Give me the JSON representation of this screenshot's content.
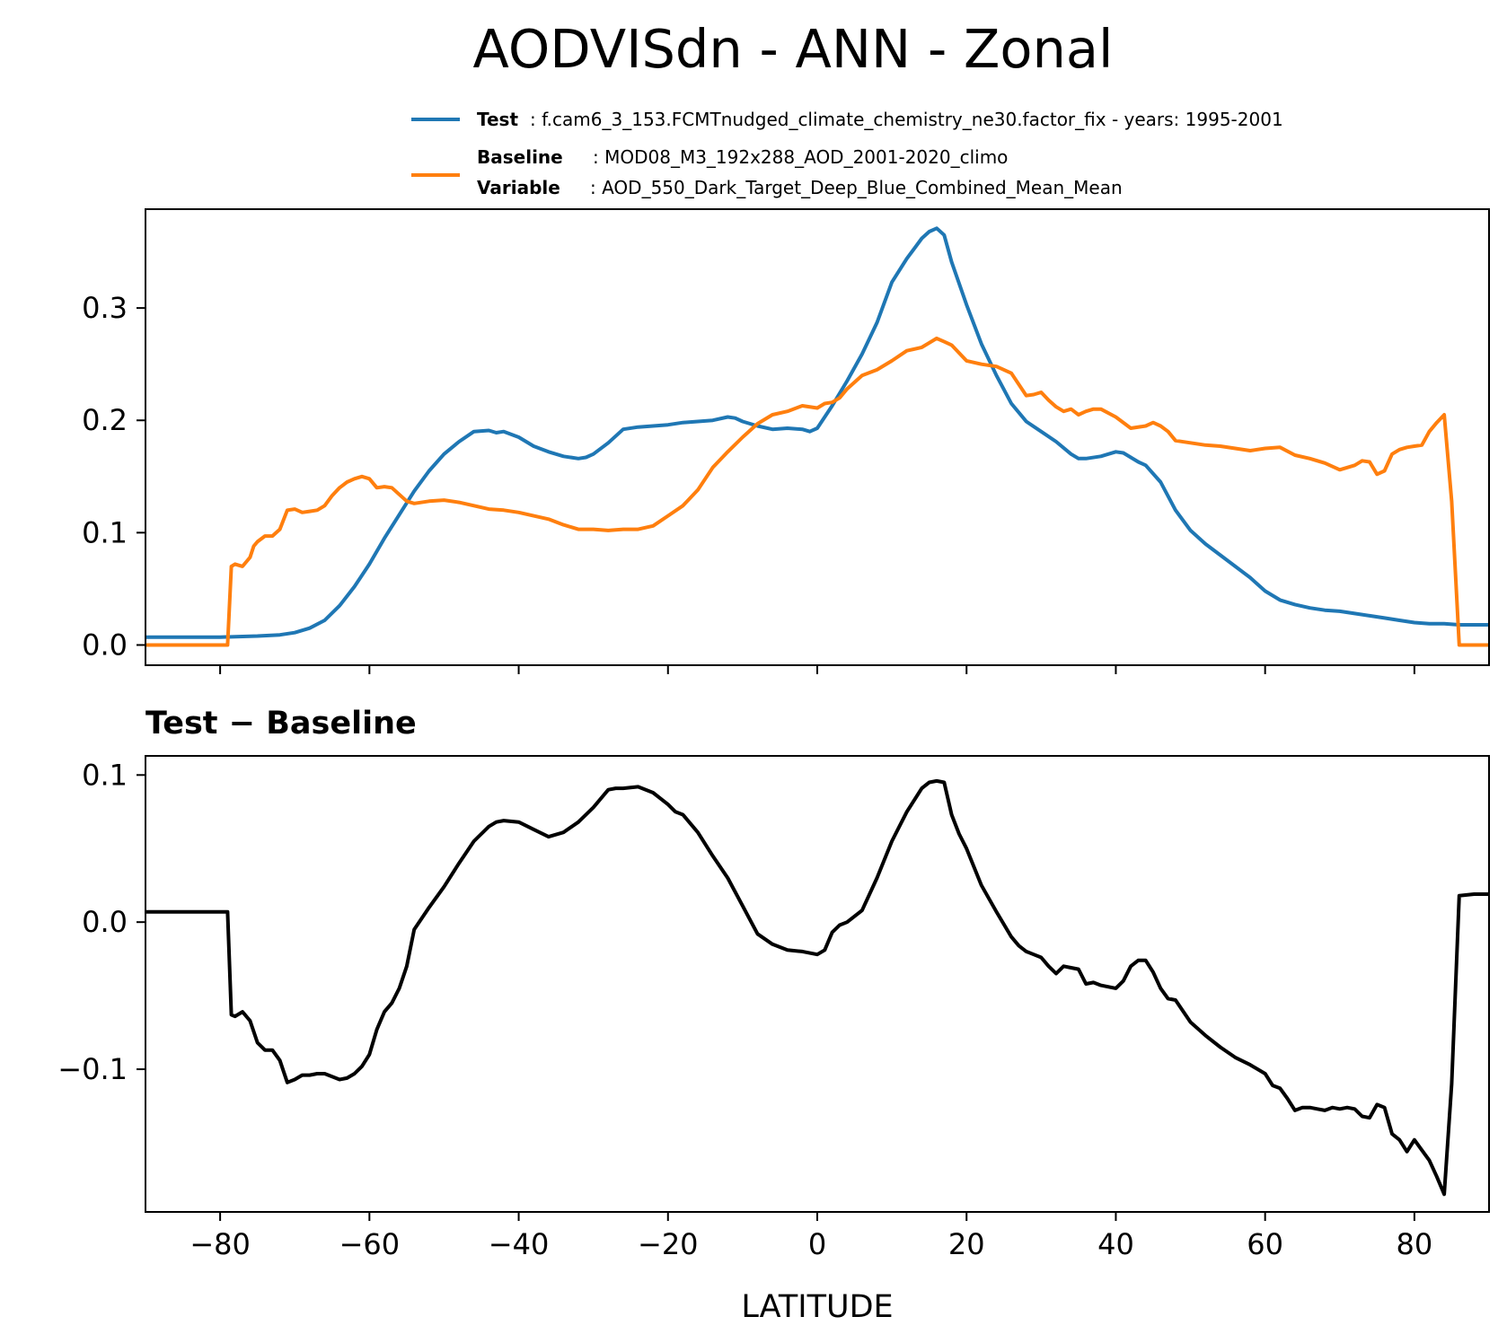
{
  "figure": {
    "title": "AODVISdn - ANN - Zonal",
    "xlabel": "LATITUDE",
    "diff_title": "Test − Baseline"
  },
  "legend": {
    "test_label": "Test",
    "test_text": ": f.cam6_3_153.FCMTnudged_climate_chemistry_ne30.factor_fix - years: 1995-2001",
    "baseline_label": "Baseline",
    "baseline_text": ": MOD08_M3_192x288_AOD_2001-2020_climo",
    "variable_label": "Variable",
    "variable_text": ": AOD_550_Dark_Target_Deep_Blue_Combined_Mean_Mean"
  },
  "colors": {
    "test": "#1f77b4",
    "baseline": "#ff7f0e",
    "difference": "#000000"
  },
  "chart_data": [
    {
      "type": "line",
      "title": "AODVISdn - ANN - Zonal",
      "xlabel": "",
      "ylabel": "",
      "xlim": [
        -90,
        90
      ],
      "ylim": [
        -0.018,
        0.388
      ],
      "xticks": [
        -80,
        -60,
        -40,
        -20,
        0,
        20,
        40,
        60,
        80
      ],
      "yticks": [
        0.0,
        0.1,
        0.2,
        0.3
      ],
      "ytick_labels": [
        "0.0",
        "0.1",
        "0.2",
        "0.3"
      ],
      "series": [
        {
          "name": "Test",
          "color": "#1f77b4",
          "x": [
            -90,
            -80,
            -75,
            -72,
            -70,
            -68,
            -66,
            -64,
            -62,
            -60,
            -58,
            -56,
            -54,
            -52,
            -50,
            -48,
            -46,
            -44,
            -43,
            -42,
            -40,
            -38,
            -36,
            -34,
            -32,
            -31,
            -30,
            -28,
            -26,
            -24,
            -22,
            -20,
            -18,
            -16,
            -14,
            -12,
            -11,
            -10,
            -8,
            -6,
            -4,
            -2,
            -1,
            0,
            2,
            4,
            6,
            8,
            10,
            12,
            14,
            15,
            16,
            17,
            18,
            20,
            22,
            24,
            26,
            28,
            30,
            32,
            34,
            35,
            36,
            38,
            40,
            41,
            42,
            43,
            44,
            46,
            48,
            50,
            52,
            54,
            56,
            58,
            60,
            62,
            64,
            66,
            68,
            70,
            72,
            74,
            76,
            78,
            80,
            82,
            84,
            86,
            88,
            90
          ],
          "y": [
            0.007,
            0.007,
            0.008,
            0.009,
            0.011,
            0.015,
            0.022,
            0.035,
            0.052,
            0.072,
            0.095,
            0.116,
            0.137,
            0.155,
            0.17,
            0.181,
            0.19,
            0.191,
            0.189,
            0.19,
            0.185,
            0.177,
            0.172,
            0.168,
            0.166,
            0.167,
            0.17,
            0.18,
            0.192,
            0.194,
            0.195,
            0.196,
            0.198,
            0.199,
            0.2,
            0.203,
            0.202,
            0.199,
            0.195,
            0.192,
            0.193,
            0.192,
            0.19,
            0.193,
            0.213,
            0.235,
            0.259,
            0.287,
            0.323,
            0.344,
            0.362,
            0.368,
            0.371,
            0.365,
            0.341,
            0.303,
            0.268,
            0.24,
            0.215,
            0.199,
            0.19,
            0.181,
            0.17,
            0.166,
            0.166,
            0.168,
            0.172,
            0.171,
            0.167,
            0.163,
            0.16,
            0.145,
            0.12,
            0.102,
            0.09,
            0.08,
            0.07,
            0.06,
            0.048,
            0.04,
            0.036,
            0.033,
            0.031,
            0.03,
            0.028,
            0.026,
            0.024,
            0.022,
            0.02,
            0.019,
            0.019,
            0.018,
            0.018,
            0.018
          ]
        },
        {
          "name": "Baseline",
          "color": "#ff7f0e",
          "x": [
            -90,
            -79,
            -78.5,
            -78,
            -77,
            -76,
            -75.5,
            -75,
            -74,
            -73,
            -72,
            -71,
            -70,
            -69,
            -68,
            -67,
            -66,
            -65,
            -64,
            -63,
            -62,
            -61,
            -60,
            -59,
            -58,
            -57,
            -56,
            -55,
            -54,
            -52,
            -50,
            -48,
            -46,
            -44,
            -42,
            -40,
            -38,
            -36,
            -34,
            -32,
            -30,
            -28,
            -26,
            -24,
            -22,
            -20,
            -18,
            -16,
            -14,
            -12,
            -10,
            -8,
            -6,
            -4,
            -2,
            0,
            1,
            2,
            3,
            4,
            6,
            8,
            10,
            12,
            14,
            16,
            17,
            18,
            20,
            22,
            24,
            26,
            28,
            29,
            30,
            31,
            32,
            33,
            34,
            35,
            36,
            37,
            38,
            40,
            42,
            44,
            45,
            46,
            47,
            48,
            50,
            52,
            54,
            56,
            58,
            60,
            62,
            64,
            66,
            68,
            70,
            72,
            73,
            74,
            75,
            76,
            77,
            78,
            79,
            80,
            81,
            82,
            83,
            84,
            85,
            86,
            88,
            90
          ],
          "y": [
            0.0,
            0.0,
            0.07,
            0.072,
            0.07,
            0.078,
            0.088,
            0.092,
            0.097,
            0.097,
            0.103,
            0.12,
            0.121,
            0.118,
            0.119,
            0.12,
            0.124,
            0.133,
            0.14,
            0.145,
            0.148,
            0.15,
            0.148,
            0.14,
            0.141,
            0.14,
            0.134,
            0.128,
            0.126,
            0.128,
            0.129,
            0.127,
            0.124,
            0.121,
            0.12,
            0.118,
            0.115,
            0.112,
            0.107,
            0.103,
            0.103,
            0.102,
            0.103,
            0.103,
            0.106,
            0.115,
            0.124,
            0.138,
            0.158,
            0.172,
            0.185,
            0.197,
            0.205,
            0.208,
            0.213,
            0.211,
            0.215,
            0.216,
            0.22,
            0.228,
            0.24,
            0.245,
            0.253,
            0.262,
            0.265,
            0.273,
            0.27,
            0.267,
            0.253,
            0.25,
            0.248,
            0.242,
            0.222,
            0.223,
            0.225,
            0.218,
            0.212,
            0.208,
            0.21,
            0.205,
            0.208,
            0.21,
            0.21,
            0.203,
            0.193,
            0.195,
            0.198,
            0.195,
            0.19,
            0.182,
            0.18,
            0.178,
            0.177,
            0.175,
            0.173,
            0.175,
            0.176,
            0.169,
            0.166,
            0.162,
            0.156,
            0.16,
            0.164,
            0.163,
            0.152,
            0.155,
            0.17,
            0.174,
            0.176,
            0.177,
            0.178,
            0.19,
            0.198,
            0.205,
            0.128,
            0.0,
            0.0,
            0.0
          ]
        }
      ],
      "legend": "top-right"
    },
    {
      "type": "line",
      "title": "Test − Baseline",
      "xlabel": "LATITUDE",
      "ylabel": "",
      "xlim": [
        -90,
        90
      ],
      "ylim": [
        -0.197,
        0.113
      ],
      "xticks": [
        -80,
        -60,
        -40,
        -20,
        0,
        20,
        40,
        60,
        80
      ],
      "xtick_labels": [
        "−80",
        "−60",
        "−40",
        "−20",
        "0",
        "20",
        "40",
        "60",
        "80"
      ],
      "yticks": [
        -0.1,
        0.0,
        0.1
      ],
      "ytick_labels": [
        "−0.1",
        "0.0",
        "0.1"
      ],
      "series": [
        {
          "name": "Test − Baseline",
          "color": "#000000",
          "x": [
            -90,
            -79,
            -78.5,
            -78,
            -77,
            -76,
            -75,
            -74,
            -73,
            -72,
            -71,
            -70,
            -69,
            -68,
            -67,
            -66,
            -65,
            -64,
            -63,
            -62,
            -61,
            -60,
            -59,
            -58,
            -57,
            -56,
            -55,
            -54,
            -52,
            -50,
            -48,
            -46,
            -44,
            -43,
            -42,
            -40,
            -38,
            -36,
            -34,
            -32,
            -30,
            -28,
            -27,
            -26,
            -24,
            -22,
            -20,
            -19,
            -18,
            -16,
            -14,
            -12,
            -10,
            -8,
            -6,
            -4,
            -2,
            0,
            1,
            2,
            3,
            4,
            6,
            8,
            10,
            12,
            14,
            15,
            16,
            17,
            18,
            19,
            20,
            22,
            24,
            26,
            27,
            28,
            29,
            30,
            31,
            32,
            33,
            34,
            35,
            36,
            37,
            38,
            40,
            41,
            42,
            43,
            44,
            45,
            46,
            47,
            48,
            50,
            52,
            54,
            56,
            58,
            60,
            61,
            62,
            63,
            64,
            65,
            66,
            67,
            68,
            69,
            70,
            71,
            72,
            73,
            74,
            75,
            76,
            77,
            78,
            79,
            80,
            81,
            82,
            83,
            84,
            85,
            86,
            88,
            90
          ],
          "y": [
            0.007,
            0.007,
            -0.063,
            -0.064,
            -0.061,
            -0.067,
            -0.082,
            -0.087,
            -0.087,
            -0.094,
            -0.109,
            -0.107,
            -0.104,
            -0.104,
            -0.103,
            -0.103,
            -0.105,
            -0.107,
            -0.106,
            -0.103,
            -0.098,
            -0.09,
            -0.073,
            -0.061,
            -0.055,
            -0.045,
            -0.03,
            -0.005,
            0.01,
            0.024,
            0.04,
            0.055,
            0.065,
            0.068,
            0.069,
            0.068,
            0.063,
            0.058,
            0.061,
            0.068,
            0.078,
            0.09,
            0.091,
            0.091,
            0.092,
            0.088,
            0.08,
            0.075,
            0.073,
            0.061,
            0.045,
            0.03,
            0.011,
            -0.008,
            -0.015,
            -0.019,
            -0.02,
            -0.022,
            -0.019,
            -0.007,
            -0.002,
            0.0,
            0.008,
            0.03,
            0.055,
            0.075,
            0.091,
            0.095,
            0.096,
            0.095,
            0.073,
            0.06,
            0.05,
            0.025,
            0.007,
            -0.01,
            -0.016,
            -0.02,
            -0.022,
            -0.024,
            -0.03,
            -0.035,
            -0.03,
            -0.031,
            -0.032,
            -0.042,
            -0.041,
            -0.043,
            -0.045,
            -0.04,
            -0.03,
            -0.026,
            -0.026,
            -0.034,
            -0.045,
            -0.052,
            -0.053,
            -0.068,
            -0.077,
            -0.085,
            -0.092,
            -0.097,
            -0.103,
            -0.111,
            -0.113,
            -0.12,
            -0.128,
            -0.126,
            -0.126,
            -0.127,
            -0.128,
            -0.126,
            -0.127,
            -0.126,
            -0.127,
            -0.132,
            -0.133,
            -0.124,
            -0.126,
            -0.144,
            -0.148,
            -0.156,
            -0.148,
            -0.155,
            -0.162,
            -0.173,
            -0.185,
            -0.11,
            0.018,
            0.019,
            0.019
          ]
        }
      ]
    }
  ]
}
